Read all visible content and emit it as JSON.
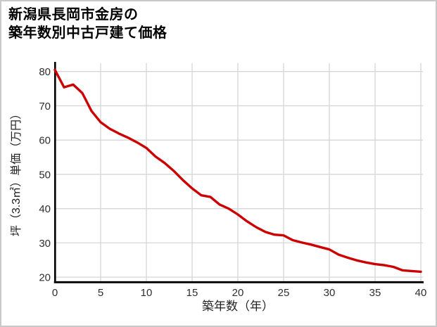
{
  "title": {
    "line1": "新潟県長岡市金房の",
    "line2": "築年数別中古戸建て価格"
  },
  "chart_data": {
    "type": "line",
    "title": "新潟県長岡市金房の築年数別中古戸建て価格",
    "xlabel": "築年数（年）",
    "ylabel": "坪（3.3㎡）単価（万円）",
    "x": [
      0,
      1,
      2,
      3,
      4,
      5,
      6,
      7,
      8,
      9,
      10,
      11,
      12,
      13,
      14,
      15,
      16,
      17,
      18,
      19,
      20,
      21,
      22,
      23,
      24,
      25,
      26,
      27,
      28,
      29,
      30,
      31,
      32,
      33,
      34,
      35,
      36,
      37,
      38,
      39,
      40
    ],
    "values": [
      80.5,
      75.4,
      76.2,
      73.7,
      68.5,
      65.2,
      63.3,
      61.9,
      60.7,
      59.3,
      57.7,
      55.2,
      53.3,
      51.0,
      48.3,
      45.9,
      43.9,
      43.4,
      41.2,
      40.0,
      38.3,
      36.3,
      34.6,
      33.2,
      32.4,
      32.2,
      30.8,
      30.1,
      29.5,
      28.8,
      28.1,
      26.6,
      25.7,
      24.9,
      24.3,
      23.8,
      23.5,
      23.0,
      22.0,
      21.8,
      21.6
    ],
    "x_ticks": [
      0,
      5,
      10,
      15,
      20,
      25,
      30,
      35,
      40
    ],
    "y_ticks": [
      20,
      30,
      40,
      50,
      60,
      70,
      80
    ],
    "xlim": [
      0,
      40
    ],
    "ylim": [
      18.8,
      82.4
    ],
    "grid": true,
    "legend": "none",
    "line_color": "#cc0000",
    "grid_color": "#d6d6d6",
    "axis_color": "#000000",
    "tick_label_color": "#2e2e2e",
    "axis_label_color": "#222222",
    "background_color": "#ffffff",
    "page_border_color": "#c9c9c9"
  }
}
